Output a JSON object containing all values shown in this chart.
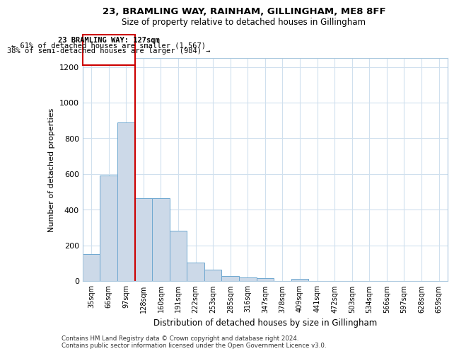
{
  "title1": "23, BRAMLING WAY, RAINHAM, GILLINGHAM, ME8 8FF",
  "title2": "Size of property relative to detached houses in Gillingham",
  "xlabel": "Distribution of detached houses by size in Gillingham",
  "ylabel": "Number of detached properties",
  "categories": [
    "35sqm",
    "66sqm",
    "97sqm",
    "128sqm",
    "160sqm",
    "191sqm",
    "222sqm",
    "253sqm",
    "285sqm",
    "316sqm",
    "347sqm",
    "378sqm",
    "409sqm",
    "441sqm",
    "472sqm",
    "503sqm",
    "534sqm",
    "566sqm",
    "597sqm",
    "628sqm",
    "659sqm"
  ],
  "values": [
    150,
    590,
    890,
    465,
    465,
    280,
    105,
    62,
    28,
    18,
    14,
    0,
    10,
    0,
    0,
    0,
    0,
    0,
    0,
    0,
    0
  ],
  "bar_color": "#ccd9e8",
  "bar_edge_color": "#6fa8d0",
  "grid_color": "#d0e0ee",
  "property_label": "23 BRAMLING WAY: 127sqm",
  "annotation_line1": "← 61% of detached houses are smaller (1,567)",
  "annotation_line2": "38% of semi-detached houses are larger (984) →",
  "box_color": "#cc0000",
  "ylim": [
    0,
    1250
  ],
  "yticks": [
    0,
    200,
    400,
    600,
    800,
    1000,
    1200
  ],
  "footnote1": "Contains HM Land Registry data © Crown copyright and database right 2024.",
  "footnote2": "Contains public sector information licensed under the Open Government Licence v3.0."
}
